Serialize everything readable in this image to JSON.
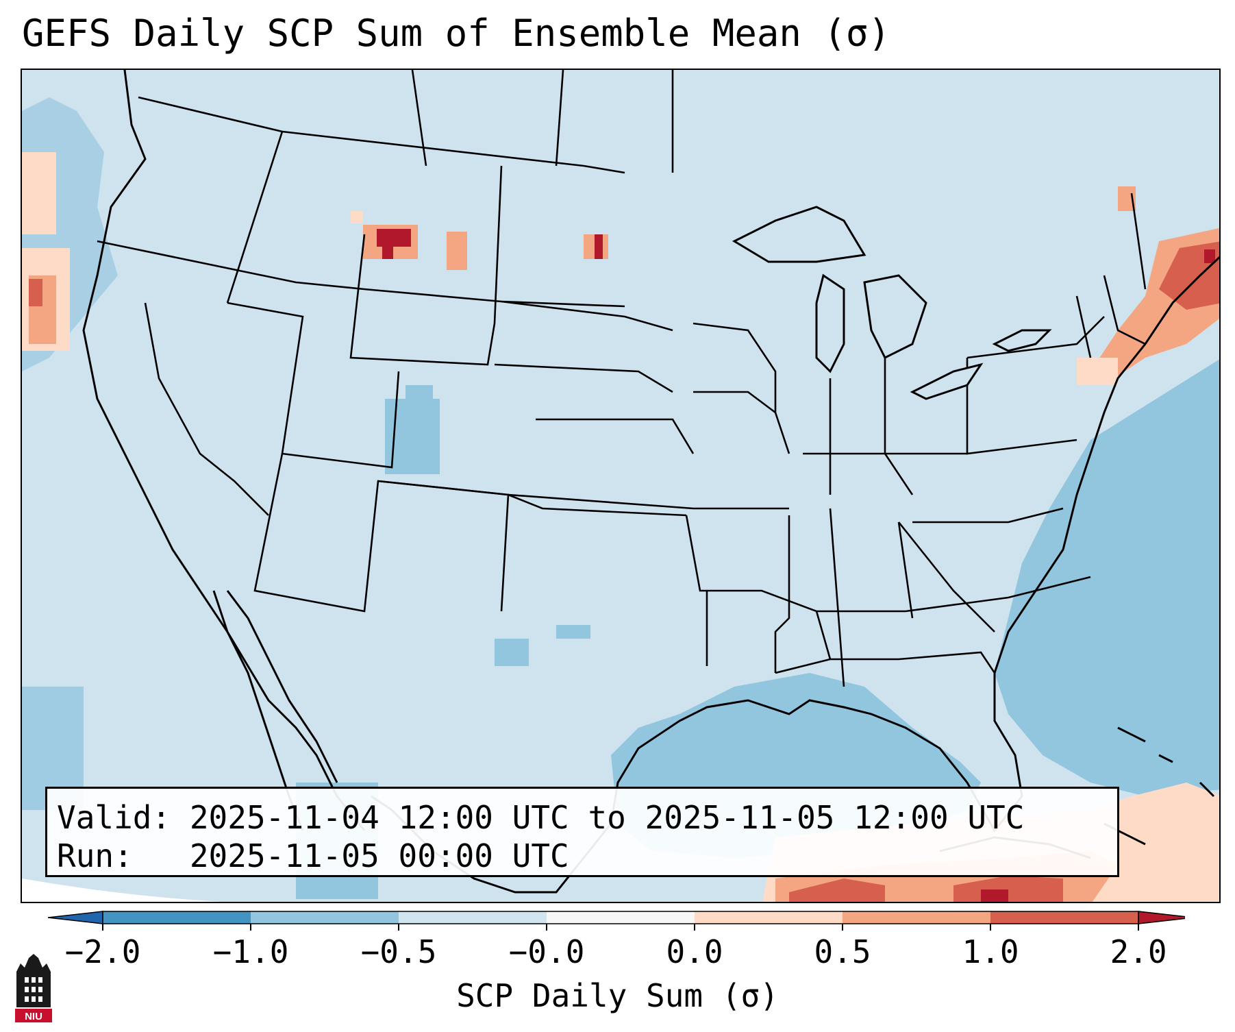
{
  "title": "GEFS Daily SCP Sum of Ensemble Mean (σ)",
  "info": {
    "valid_line": "Valid: 2025-11-04 12:00 UTC to 2025-11-05 12:00 UTC",
    "run_line": "Run:   2025-11-05 00:00 UTC"
  },
  "colorbar": {
    "label": "SCP Daily Sum (σ)",
    "ticks": [
      "−2.0",
      "−1.0",
      "−0.5",
      "−0.0",
      "0.0",
      "0.5",
      "1.0",
      "2.0"
    ],
    "bins": [
      {
        "range": "< -2.0",
        "color": "#2166ac"
      },
      {
        "range": "-2.0 to -1.0",
        "color": "#4393c3"
      },
      {
        "range": "-1.0 to -0.5",
        "color": "#92c5de"
      },
      {
        "range": "-0.5 to -0.0",
        "color": "#d1e5f0"
      },
      {
        "range": "-0.0 to 0.0",
        "color": "#f7f7f7"
      },
      {
        "range": "0.0 to 0.5",
        "color": "#fddbc7"
      },
      {
        "range": "0.5 to 1.0",
        "color": "#f4a582"
      },
      {
        "range": "1.0 to 2.0",
        "color": "#d6604d"
      },
      {
        "range": "> 2.0",
        "color": "#b2182b"
      }
    ]
  },
  "logo": {
    "text": "NIU",
    "color": "#c8102e"
  }
}
